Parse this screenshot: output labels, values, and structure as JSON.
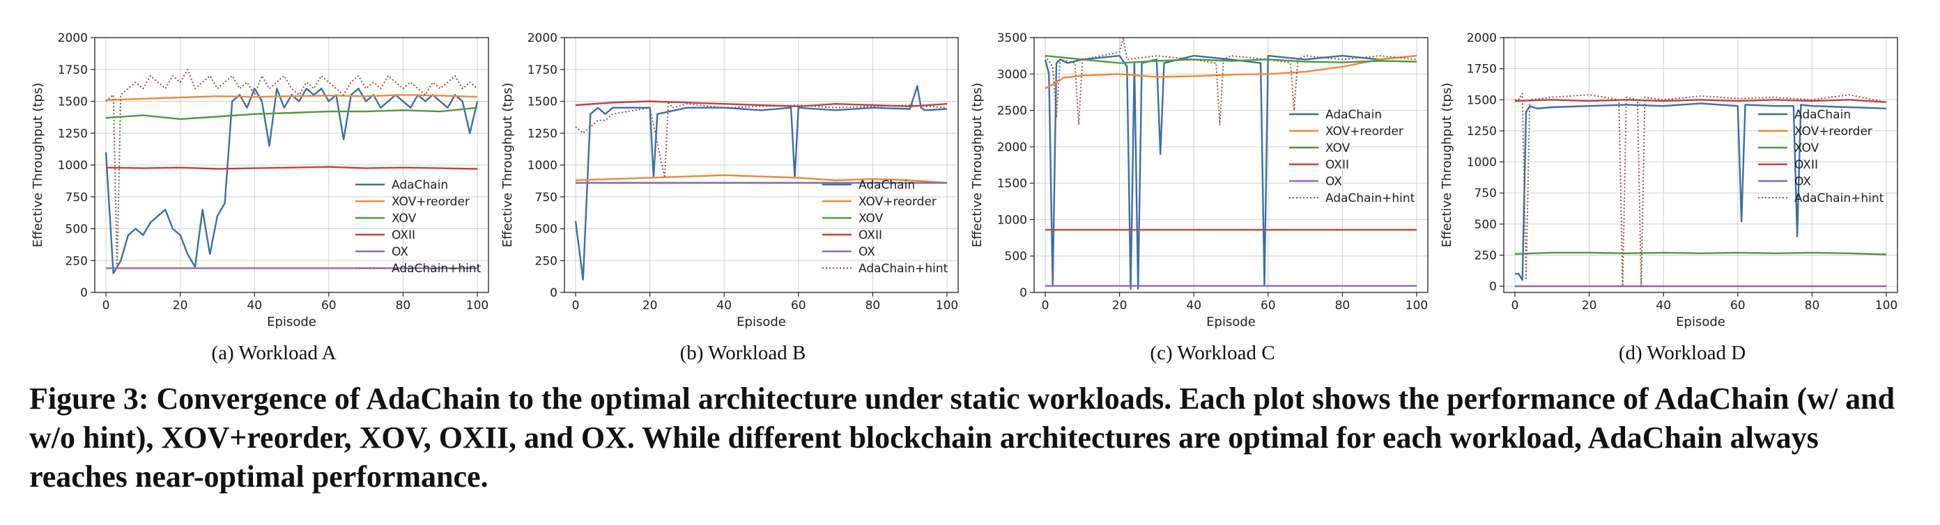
{
  "colors": {
    "AdaChain": "#3a6fa8",
    "XOV+reorder": "#f08a32",
    "XOV": "#4e9a3c",
    "OXII": "#c6403d",
    "OX": "#8a6bb8",
    "AdaChain+hint": "#8c564b"
  },
  "subcaptions": [
    "(a) Workload A",
    "(b) Workload B",
    "(c) Workload C",
    "(d) Workload D"
  ],
  "caption": "Figure 3: Convergence of AdaChain to the optimal architecture under static workloads. Each plot shows the performance of AdaChain (w/ and w/o hint), XOV+reorder, XOV, OXII, and OX. While different blockchain architectures are optimal for each workload, AdaChain always reaches near-optimal performance.",
  "chart_data": [
    {
      "type": "line",
      "xlabel": "Episode",
      "ylabel": "Effective Throughput (tps)",
      "xlim": [
        -3,
        103
      ],
      "ylim": [
        0,
        2000
      ],
      "xticks": [
        0,
        20,
        40,
        60,
        80,
        100
      ],
      "yticks": [
        0,
        250,
        500,
        750,
        1000,
        1250,
        1500,
        1750,
        2000
      ],
      "grid": true,
      "legend_position": "lower-right",
      "series": [
        {
          "name": "AdaChain",
          "style": "solid",
          "x": [
            0,
            2,
            4,
            6,
            8,
            10,
            12,
            14,
            16,
            18,
            20,
            22,
            24,
            26,
            28,
            30,
            32,
            34,
            36,
            38,
            40,
            42,
            44,
            46,
            48,
            50,
            52,
            54,
            56,
            58,
            60,
            62,
            64,
            66,
            68,
            70,
            72,
            74,
            76,
            78,
            80,
            82,
            84,
            86,
            88,
            90,
            92,
            94,
            96,
            98,
            100
          ],
          "values": [
            1100,
            150,
            250,
            450,
            500,
            450,
            550,
            600,
            650,
            500,
            450,
            300,
            200,
            650,
            300,
            600,
            700,
            1500,
            1550,
            1450,
            1600,
            1500,
            1150,
            1600,
            1450,
            1550,
            1500,
            1600,
            1550,
            1600,
            1500,
            1550,
            1200,
            1550,
            1600,
            1500,
            1550,
            1450,
            1500,
            1550,
            1500,
            1450,
            1550,
            1500,
            1550,
            1500,
            1450,
            1550,
            1500,
            1250,
            1500
          ]
        },
        {
          "name": "XOV+reorder",
          "style": "solid",
          "x": [
            0,
            10,
            20,
            30,
            40,
            50,
            60,
            70,
            80,
            90,
            100
          ],
          "values": [
            1510,
            1520,
            1530,
            1540,
            1535,
            1540,
            1545,
            1540,
            1550,
            1545,
            1535
          ]
        },
        {
          "name": "XOV",
          "style": "solid",
          "x": [
            0,
            10,
            20,
            30,
            40,
            50,
            60,
            70,
            80,
            90,
            100
          ],
          "values": [
            1370,
            1390,
            1360,
            1380,
            1400,
            1410,
            1420,
            1420,
            1430,
            1420,
            1450
          ]
        },
        {
          "name": "OXII",
          "style": "solid",
          "x": [
            0,
            10,
            20,
            30,
            40,
            50,
            60,
            70,
            80,
            90,
            100
          ],
          "values": [
            980,
            975,
            980,
            970,
            975,
            980,
            985,
            975,
            980,
            975,
            970
          ]
        },
        {
          "name": "OX",
          "style": "solid",
          "x": [
            0,
            100
          ],
          "values": [
            190,
            190
          ]
        },
        {
          "name": "AdaChain+hint",
          "style": "dotted",
          "x": [
            0,
            2,
            3,
            4,
            6,
            8,
            10,
            12,
            14,
            16,
            18,
            20,
            22,
            24,
            26,
            28,
            30,
            32,
            34,
            36,
            38,
            40,
            42,
            44,
            46,
            48,
            50,
            52,
            54,
            56,
            58,
            60,
            62,
            64,
            66,
            68,
            70,
            72,
            74,
            76,
            78,
            80,
            82,
            84,
            86,
            88,
            90,
            92,
            94,
            96,
            98,
            100
          ],
          "values": [
            1500,
            1550,
            200,
            1550,
            1600,
            1650,
            1600,
            1700,
            1650,
            1600,
            1700,
            1650,
            1750,
            1600,
            1650,
            1700,
            1600,
            1650,
            1700,
            1600,
            1650,
            1550,
            1700,
            1600,
            1650,
            1700,
            1600,
            1550,
            1650,
            1600,
            1700,
            1650,
            1600,
            1550,
            1650,
            1700,
            1600,
            1650,
            1600,
            1700,
            1650,
            1600,
            1650,
            1600,
            1550,
            1650,
            1600,
            1650,
            1700,
            1600,
            1650,
            1600
          ]
        }
      ]
    },
    {
      "type": "line",
      "xlabel": "Episode",
      "ylabel": "Effective Throughput (tps)",
      "xlim": [
        -3,
        103
      ],
      "ylim": [
        0,
        2000
      ],
      "xticks": [
        0,
        20,
        40,
        60,
        80,
        100
      ],
      "yticks": [
        0,
        250,
        500,
        750,
        1000,
        1250,
        1500,
        1750,
        2000
      ],
      "grid": true,
      "legend_position": "lower-right",
      "series": [
        {
          "name": "AdaChain",
          "style": "solid",
          "x": [
            0,
            2,
            4,
            6,
            8,
            10,
            20,
            21,
            22,
            30,
            40,
            50,
            58,
            59,
            60,
            70,
            80,
            90,
            92,
            93,
            94,
            100
          ],
          "values": [
            560,
            100,
            1400,
            1450,
            1400,
            1450,
            1450,
            900,
            1400,
            1450,
            1450,
            1430,
            1450,
            900,
            1450,
            1430,
            1450,
            1440,
            1620,
            1450,
            1430,
            1440
          ]
        },
        {
          "name": "XOV+reorder",
          "style": "solid",
          "x": [
            0,
            10,
            20,
            30,
            40,
            50,
            60,
            70,
            80,
            90,
            100
          ],
          "values": [
            880,
            890,
            900,
            910,
            920,
            910,
            900,
            880,
            890,
            880,
            860
          ]
        },
        {
          "name": "XOV",
          "style": "solid",
          "x": [
            0,
            100
          ],
          "values": [
            860,
            860
          ]
        },
        {
          "name": "OXII",
          "style": "solid",
          "x": [
            0,
            10,
            20,
            30,
            40,
            50,
            60,
            70,
            80,
            90,
            100
          ],
          "values": [
            1470,
            1490,
            1500,
            1490,
            1480,
            1470,
            1460,
            1480,
            1470,
            1460,
            1480
          ]
        },
        {
          "name": "OX",
          "style": "solid",
          "x": [
            0,
            100
          ],
          "values": [
            860,
            860
          ]
        },
        {
          "name": "AdaChain+hint",
          "style": "dotted",
          "x": [
            0,
            2,
            4,
            6,
            8,
            10,
            20,
            24,
            25,
            26,
            30,
            40,
            50,
            60,
            70,
            80,
            90,
            100
          ],
          "values": [
            1300,
            1250,
            1300,
            1350,
            1350,
            1400,
            1450,
            900,
            1500,
            1450,
            1480,
            1450,
            1460,
            1470,
            1450,
            1460,
            1470,
            1450
          ]
        }
      ]
    },
    {
      "type": "line",
      "xlabel": "Episode",
      "ylabel": "Effective Throughput (tps)",
      "xlim": [
        -3,
        103
      ],
      "ylim": [
        0,
        3500
      ],
      "xticks": [
        0,
        20,
        40,
        60,
        80,
        100
      ],
      "yticks": [
        0,
        500,
        1000,
        1500,
        2000,
        2500,
        3000,
        3500
      ],
      "grid": true,
      "legend_position": "center-right",
      "series": [
        {
          "name": "AdaChain",
          "style": "solid",
          "x": [
            0,
            1,
            2,
            3,
            4,
            6,
            10,
            20,
            22,
            23,
            24,
            25,
            26,
            30,
            31,
            32,
            40,
            50,
            58,
            59,
            60,
            70,
            80,
            90,
            100
          ],
          "values": [
            3200,
            3000,
            100,
            3150,
            3200,
            3150,
            3200,
            3250,
            3100,
            50,
            3150,
            50,
            3150,
            3200,
            1900,
            3150,
            3250,
            3200,
            3150,
            100,
            3250,
            3200,
            3250,
            3200,
            3250
          ]
        },
        {
          "name": "XOV+reorder",
          "style": "solid",
          "x": [
            0,
            5,
            10,
            20,
            30,
            40,
            50,
            60,
            70,
            80,
            90,
            100
          ],
          "values": [
            2800,
            2950,
            2980,
            3000,
            2960,
            2970,
            2990,
            3000,
            3030,
            3100,
            3200,
            3250
          ]
        },
        {
          "name": "XOV",
          "style": "solid",
          "x": [
            0,
            10,
            20,
            30,
            40,
            50,
            60,
            70,
            80,
            90,
            100
          ],
          "values": [
            3250,
            3200,
            3150,
            3180,
            3200,
            3180,
            3200,
            3170,
            3160,
            3180,
            3170
          ]
        },
        {
          "name": "OXII",
          "style": "solid",
          "x": [
            0,
            100
          ],
          "values": [
            860,
            860
          ]
        },
        {
          "name": "OX",
          "style": "solid",
          "x": [
            0,
            100
          ],
          "values": [
            90,
            90
          ]
        },
        {
          "name": "AdaChain+hint",
          "style": "dotted",
          "x": [
            0,
            2,
            3,
            4,
            8,
            9,
            10,
            20,
            21,
            22,
            30,
            40,
            46,
            47,
            48,
            50,
            60,
            66,
            67,
            68,
            70,
            80,
            90,
            100
          ],
          "values": [
            3250,
            3100,
            2400,
            3200,
            3150,
            2300,
            3200,
            3300,
            3500,
            3200,
            3250,
            3200,
            3150,
            2300,
            3200,
            3250,
            3200,
            3150,
            2500,
            3200,
            3250,
            3200,
            3250,
            3200
          ]
        }
      ]
    },
    {
      "type": "line",
      "xlabel": "Episode",
      "ylabel": "Effective Throughput (tps)",
      "xlim": [
        -3,
        103
      ],
      "ylim": [
        -50,
        2000
      ],
      "xticks": [
        0,
        20,
        40,
        60,
        80,
        100
      ],
      "yticks": [
        0,
        250,
        500,
        750,
        1000,
        1250,
        1500,
        1750,
        2000
      ],
      "grid": true,
      "legend_position": "center-right",
      "series": [
        {
          "name": "AdaChain",
          "style": "solid",
          "x": [
            0,
            1,
            2,
            3,
            4,
            6,
            10,
            20,
            30,
            40,
            50,
            60,
            61,
            62,
            70,
            75,
            76,
            77,
            80,
            90,
            100
          ],
          "values": [
            100,
            100,
            50,
            1400,
            1450,
            1430,
            1440,
            1450,
            1460,
            1450,
            1470,
            1450,
            520,
            1460,
            1450,
            1450,
            400,
            1460,
            1450,
            1440,
            1430
          ]
        },
        {
          "name": "XOV+reorder",
          "style": "solid",
          "x": [
            0,
            100
          ],
          "values": [
            0,
            0
          ]
        },
        {
          "name": "XOV",
          "style": "solid",
          "x": [
            0,
            10,
            20,
            30,
            40,
            50,
            60,
            70,
            80,
            90,
            100
          ],
          "values": [
            260,
            270,
            270,
            265,
            270,
            265,
            270,
            265,
            270,
            265,
            255
          ]
        },
        {
          "name": "OXII",
          "style": "solid",
          "x": [
            0,
            10,
            20,
            30,
            40,
            50,
            60,
            70,
            80,
            90,
            100
          ],
          "values": [
            1490,
            1500,
            1490,
            1500,
            1490,
            1500,
            1490,
            1500,
            1490,
            1500,
            1480
          ]
        },
        {
          "name": "OX",
          "style": "solid",
          "x": [
            0,
            100
          ],
          "values": [
            0,
            0
          ]
        },
        {
          "name": "AdaChain+hint",
          "style": "dotted",
          "x": [
            0,
            1,
            2,
            3,
            4,
            10,
            20,
            28,
            29,
            30,
            33,
            34,
            35,
            40,
            50,
            60,
            70,
            80,
            90,
            100
          ],
          "values": [
            1500,
            1500,
            1550,
            50,
            1500,
            1520,
            1540,
            1500,
            0,
            1520,
            1500,
            0,
            1520,
            1500,
            1530,
            1510,
            1520,
            1500,
            1540,
            1480
          ]
        }
      ]
    }
  ]
}
